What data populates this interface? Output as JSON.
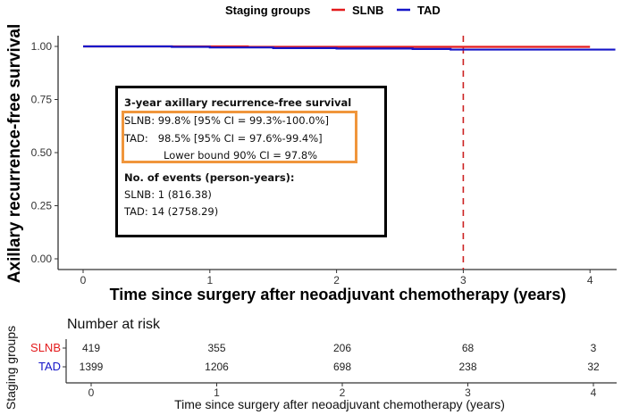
{
  "chart_data": {
    "type": "line",
    "title": "",
    "legend": {
      "title": "Staging groups",
      "placement": "top",
      "entries": [
        {
          "name": "SLNB",
          "color": "#e31a1c"
        },
        {
          "name": "TAD",
          "color": "#1515c8"
        }
      ]
    },
    "xlabel": "Time since surgery after neoadjuvant chemotherapy (years)",
    "ylabel": "Axillary recurrence-free survival",
    "xlim": [
      -0.2,
      4.2
    ],
    "ylim": [
      0,
      1
    ],
    "x_ticks": [
      0,
      1,
      2,
      3,
      4
    ],
    "x_tick_labels": [
      "0",
      "1",
      "2",
      "3",
      "4"
    ],
    "y_ticks": [
      0,
      0.25,
      0.5,
      0.75,
      1.0
    ],
    "y_tick_labels": [
      "0.00",
      "0.25",
      "0.50",
      "0.75",
      "1.00"
    ],
    "grid": false,
    "reference_line": {
      "x": 3,
      "style": "dashed",
      "color": "#cc2222"
    },
    "series": [
      {
        "name": "SLNB",
        "color": "#e31a1c",
        "x": [
          0,
          1.3,
          2.0,
          3.0,
          4.0
        ],
        "y": [
          1.0,
          0.998,
          0.998,
          0.998,
          0.998
        ]
      },
      {
        "name": "TAD",
        "color": "#1515c8",
        "x": [
          0,
          0.7,
          1.0,
          1.5,
          2.0,
          2.6,
          2.9,
          3.0,
          4.2
        ],
        "y": [
          1.0,
          0.998,
          0.995,
          0.992,
          0.99,
          0.988,
          0.985,
          0.985,
          0.985
        ]
      }
    ],
    "risk_table": {
      "title": "Number at risk",
      "ylabel": "Staging groups",
      "xlabel": "Time since surgery after neoadjuvant chemotherapy (years)",
      "times": [
        0,
        1,
        2,
        3,
        4
      ],
      "rows": [
        {
          "group": "SLNB",
          "color": "#e31a1c",
          "values": [
            419,
            355,
            206,
            68,
            3
          ]
        },
        {
          "group": "TAD",
          "color": "#1515c8",
          "values": [
            1399,
            1206,
            698,
            238,
            32
          ]
        }
      ]
    }
  },
  "annotation": {
    "heading": "3-year axillary recurrence-free survival",
    "slnb_line": "SLNB: 99.8% [95% CI = 99.3%-100.0%]",
    "tad_line": "TAD:   98.5% [95% CI = 97.6%-99.4%]",
    "lower_bound_line": "Lower bound 90% CI = 97.8%",
    "events_heading": "No. of events (person-years):",
    "slnb_events": "SLNB: 1 (816.38)",
    "tad_events": "TAD: 14 (2758.29)"
  }
}
